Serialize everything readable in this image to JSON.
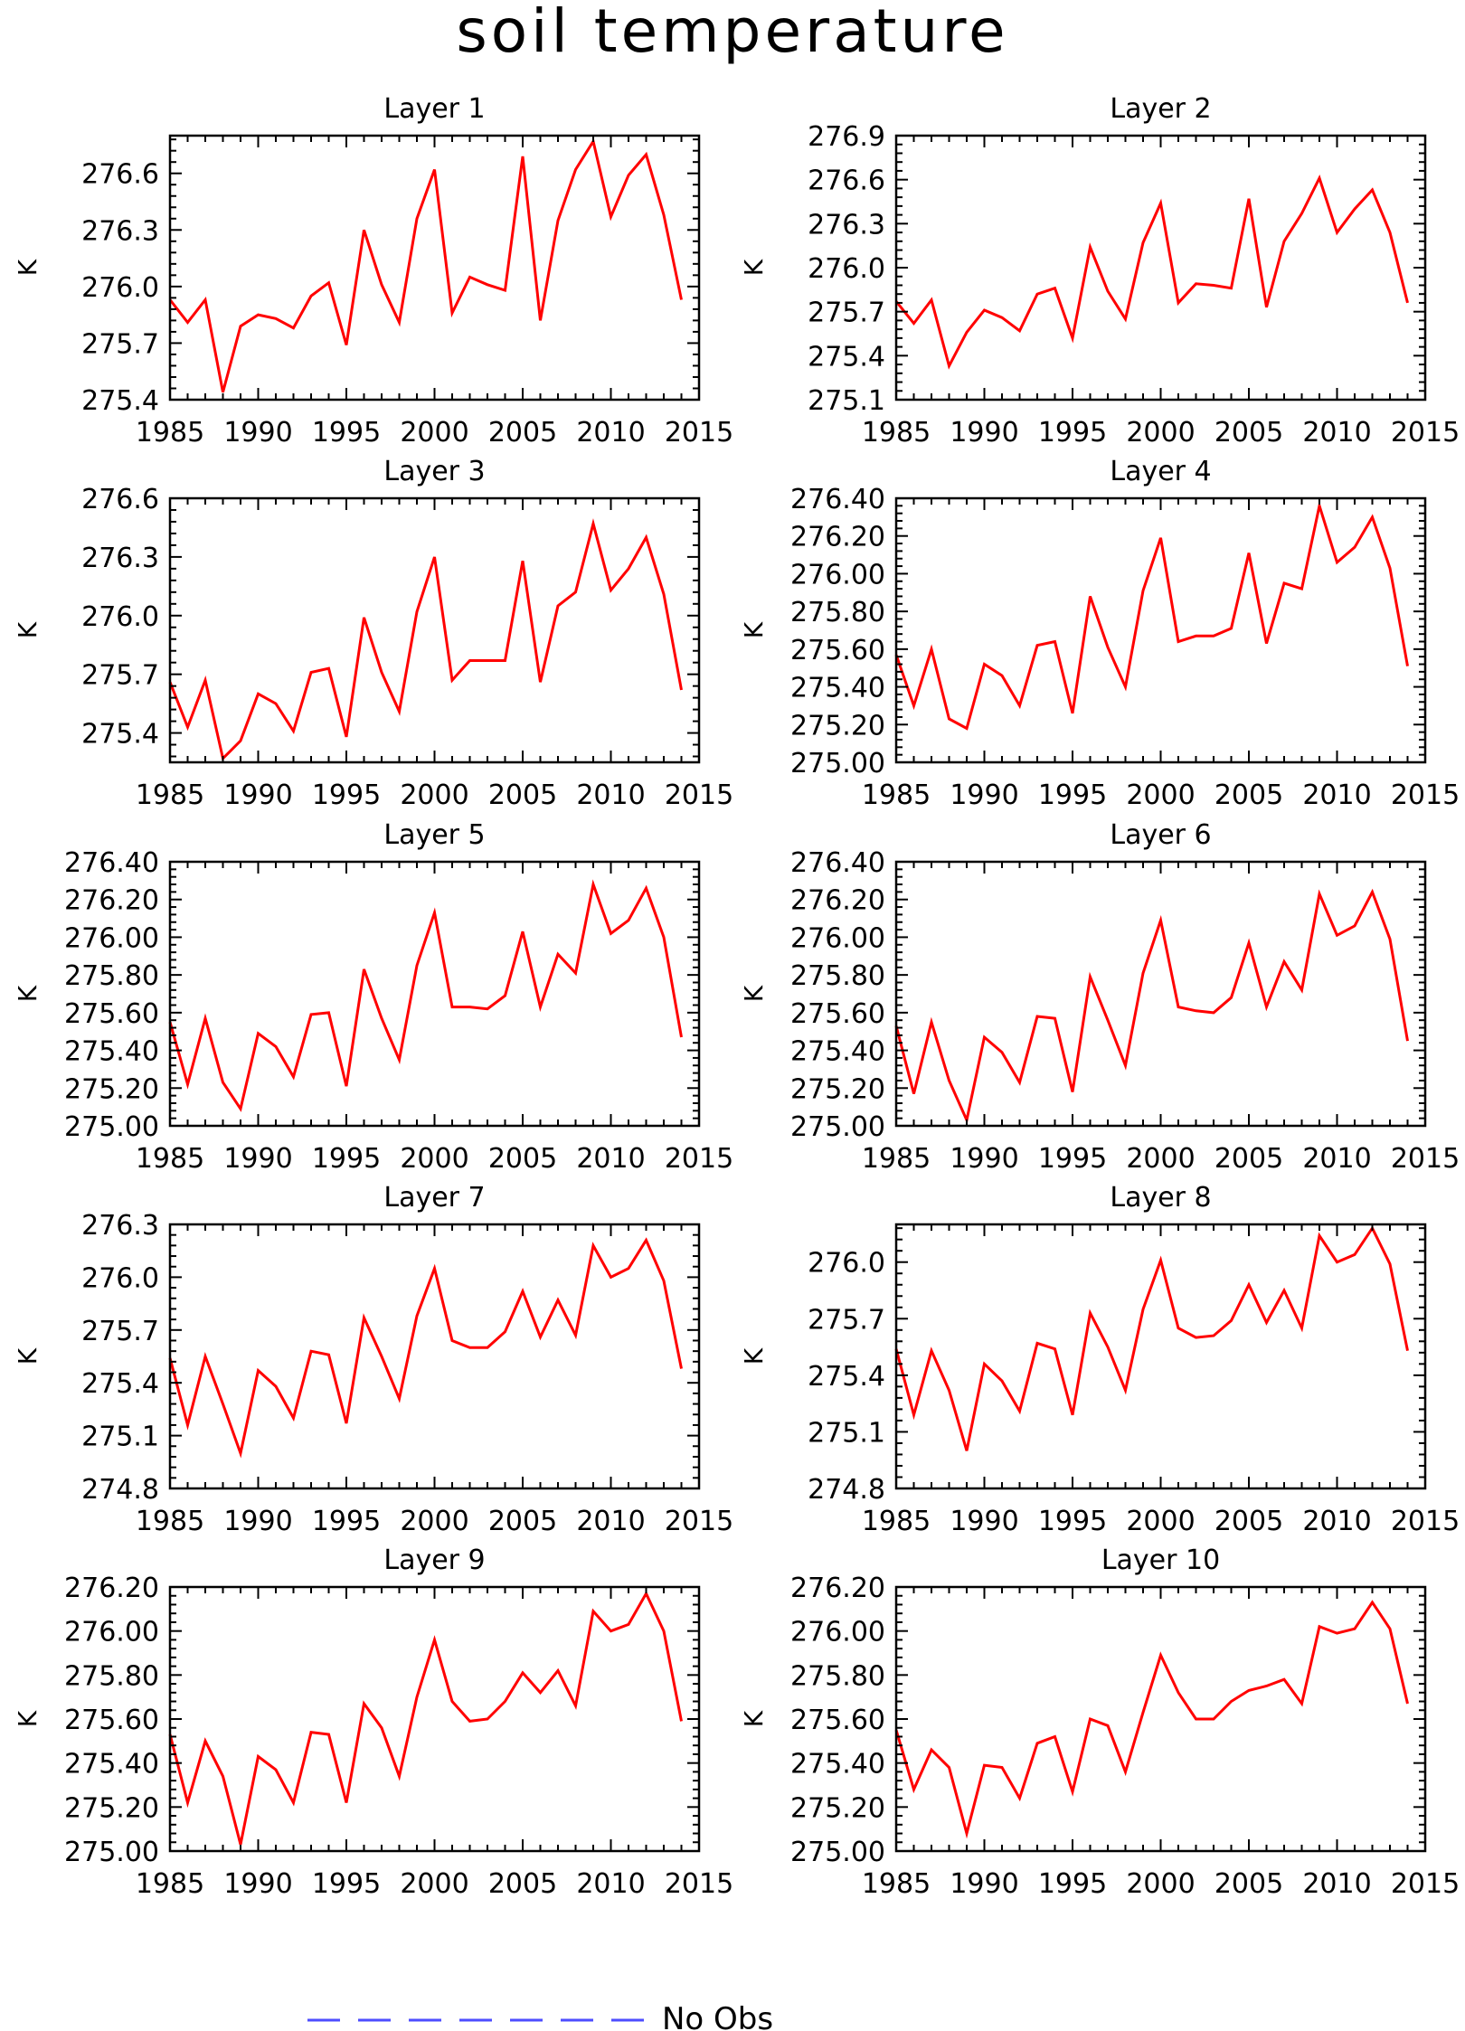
{
  "page": {
    "title": "soil temperature",
    "legend": {
      "label": "No Obs",
      "color": "#4d4dff"
    }
  },
  "colors": {
    "line": "#ff0000",
    "axis": "#000000"
  },
  "chart_data": [
    {
      "type": "line",
      "title": "Layer 1",
      "xlabel": "",
      "ylabel": "K",
      "xlim": [
        1985,
        2015
      ],
      "ylim": [
        275.4,
        276.8
      ],
      "xticks": [
        1985,
        1990,
        1995,
        2000,
        2005,
        2010,
        2015
      ],
      "yticks": [
        "275.4",
        "275.7",
        "276.0",
        "276.3",
        "276.6"
      ],
      "x": [
        1985,
        1986,
        1987,
        1988,
        1989,
        1990,
        1991,
        1992,
        1993,
        1994,
        1995,
        1996,
        1997,
        1998,
        1999,
        2000,
        2001,
        2002,
        2003,
        2004,
        2005,
        2006,
        2007,
        2008,
        2009,
        2010,
        2011,
        2012,
        2013,
        2014
      ],
      "values": [
        275.93,
        275.81,
        275.93,
        275.44,
        275.79,
        275.85,
        275.83,
        275.78,
        275.95,
        276.02,
        275.69,
        276.3,
        276.01,
        275.81,
        276.36,
        276.62,
        275.86,
        276.05,
        276.01,
        275.98,
        276.69,
        275.82,
        276.35,
        276.62,
        276.77,
        276.37,
        276.59,
        276.7,
        276.38,
        275.93
      ]
    },
    {
      "type": "line",
      "title": "Layer 2",
      "xlabel": "",
      "ylabel": "K",
      "xlim": [
        1985,
        2015
      ],
      "ylim": [
        275.1,
        276.9
      ],
      "xticks": [
        1985,
        1990,
        1995,
        2000,
        2005,
        2010,
        2015
      ],
      "yticks": [
        "275.1",
        "275.4",
        "275.7",
        "276.0",
        "276.3",
        "276.6",
        "276.9"
      ],
      "x": [
        1985,
        1986,
        1987,
        1988,
        1989,
        1990,
        1991,
        1992,
        1993,
        1994,
        1995,
        1996,
        1997,
        1998,
        1999,
        2000,
        2001,
        2002,
        2003,
        2004,
        2005,
        2006,
        2007,
        2008,
        2009,
        2010,
        2011,
        2012,
        2013,
        2014
      ],
      "values": [
        275.77,
        275.62,
        275.78,
        275.33,
        275.56,
        275.71,
        275.66,
        275.57,
        275.82,
        275.86,
        275.52,
        276.14,
        275.84,
        275.65,
        276.17,
        276.44,
        275.76,
        275.89,
        275.88,
        275.86,
        276.47,
        275.73,
        276.18,
        276.37,
        276.61,
        276.24,
        276.4,
        276.53,
        276.24,
        275.76
      ]
    },
    {
      "type": "line",
      "title": "Layer 3",
      "xlabel": "",
      "ylabel": "K",
      "xlim": [
        1985,
        2015
      ],
      "ylim": [
        275.25,
        276.6
      ],
      "xticks": [
        1985,
        1990,
        1995,
        2000,
        2005,
        2010,
        2015
      ],
      "yticks": [
        "275.4",
        "275.7",
        "276.0",
        "276.3",
        "276.6"
      ],
      "x": [
        1985,
        1986,
        1987,
        1988,
        1989,
        1990,
        1991,
        1992,
        1993,
        1994,
        1995,
        1996,
        1997,
        1998,
        1999,
        2000,
        2001,
        2002,
        2003,
        2004,
        2005,
        2006,
        2007,
        2008,
        2009,
        2010,
        2011,
        2012,
        2013,
        2014
      ],
      "values": [
        275.66,
        275.43,
        275.67,
        275.27,
        275.36,
        275.6,
        275.55,
        275.41,
        275.71,
        275.73,
        275.38,
        275.99,
        275.71,
        275.51,
        276.02,
        276.3,
        275.67,
        275.77,
        275.77,
        275.77,
        276.28,
        275.66,
        276.05,
        276.12,
        276.47,
        276.13,
        276.24,
        276.4,
        276.11,
        275.62
      ]
    },
    {
      "type": "line",
      "title": "Layer 4",
      "xlabel": "",
      "ylabel": "K",
      "xlim": [
        1985,
        2015
      ],
      "ylim": [
        275.0,
        276.4
      ],
      "xticks": [
        1985,
        1990,
        1995,
        2000,
        2005,
        2010,
        2015
      ],
      "yticks": [
        "275.00",
        "275.20",
        "275.40",
        "275.60",
        "275.80",
        "276.00",
        "276.20",
        "276.40"
      ],
      "x": [
        1985,
        1986,
        1987,
        1988,
        1989,
        1990,
        1991,
        1992,
        1993,
        1994,
        1995,
        1996,
        1997,
        1998,
        1999,
        2000,
        2001,
        2002,
        2003,
        2004,
        2005,
        2006,
        2007,
        2008,
        2009,
        2010,
        2011,
        2012,
        2013,
        2014
      ],
      "values": [
        275.57,
        275.3,
        275.6,
        275.23,
        275.18,
        275.52,
        275.46,
        275.3,
        275.62,
        275.64,
        275.26,
        275.88,
        275.61,
        275.4,
        275.91,
        276.19,
        275.64,
        275.67,
        275.67,
        275.71,
        276.11,
        275.63,
        275.95,
        275.92,
        276.36,
        276.06,
        276.14,
        276.3,
        276.03,
        275.51
      ]
    },
    {
      "type": "line",
      "title": "Layer 5",
      "xlabel": "",
      "ylabel": "K",
      "xlim": [
        1985,
        2015
      ],
      "ylim": [
        275.0,
        276.4
      ],
      "xticks": [
        1985,
        1990,
        1995,
        2000,
        2005,
        2010,
        2015
      ],
      "yticks": [
        "275.00",
        "275.20",
        "275.40",
        "275.60",
        "275.80",
        "276.00",
        "276.20",
        "276.40"
      ],
      "x": [
        1985,
        1986,
        1987,
        1988,
        1989,
        1990,
        1991,
        1992,
        1993,
        1994,
        1995,
        1996,
        1997,
        1998,
        1999,
        2000,
        2001,
        2002,
        2003,
        2004,
        2005,
        2006,
        2007,
        2008,
        2009,
        2010,
        2011,
        2012,
        2013,
        2014
      ],
      "values": [
        275.55,
        275.22,
        275.57,
        275.23,
        275.09,
        275.49,
        275.42,
        275.26,
        275.59,
        275.6,
        275.21,
        275.83,
        275.57,
        275.35,
        275.85,
        276.13,
        275.63,
        275.63,
        275.62,
        275.69,
        276.03,
        275.63,
        275.91,
        275.81,
        276.28,
        276.02,
        276.09,
        276.26,
        276.0,
        275.47
      ]
    },
    {
      "type": "line",
      "title": "Layer 6",
      "xlabel": "",
      "ylabel": "K",
      "xlim": [
        1985,
        2015
      ],
      "ylim": [
        275.0,
        276.4
      ],
      "xticks": [
        1985,
        1990,
        1995,
        2000,
        2005,
        2010,
        2015
      ],
      "yticks": [
        "275.00",
        "275.20",
        "275.40",
        "275.60",
        "275.80",
        "276.00",
        "276.20",
        "276.40"
      ],
      "x": [
        1985,
        1986,
        1987,
        1988,
        1989,
        1990,
        1991,
        1992,
        1993,
        1994,
        1995,
        1996,
        1997,
        1998,
        1999,
        2000,
        2001,
        2002,
        2003,
        2004,
        2005,
        2006,
        2007,
        2008,
        2009,
        2010,
        2011,
        2012,
        2013,
        2014
      ],
      "values": [
        275.53,
        275.17,
        275.55,
        275.24,
        275.03,
        275.47,
        275.39,
        275.23,
        275.58,
        275.57,
        275.18,
        275.79,
        275.56,
        275.32,
        275.81,
        276.09,
        275.63,
        275.61,
        275.6,
        275.68,
        275.97,
        275.63,
        275.87,
        275.72,
        276.23,
        276.01,
        276.06,
        276.24,
        275.99,
        275.45
      ]
    },
    {
      "type": "line",
      "title": "Layer 7",
      "xlabel": "",
      "ylabel": "K",
      "xlim": [
        1985,
        2015
      ],
      "ylim": [
        274.8,
        276.3
      ],
      "xticks": [
        1985,
        1990,
        1995,
        2000,
        2005,
        2010,
        2015
      ],
      "yticks": [
        "274.8",
        "275.1",
        "275.4",
        "275.7",
        "276.0",
        "276.3"
      ],
      "x": [
        1985,
        1986,
        1987,
        1988,
        1989,
        1990,
        1991,
        1992,
        1993,
        1994,
        1995,
        1996,
        1997,
        1998,
        1999,
        2000,
        2001,
        2002,
        2003,
        2004,
        2005,
        2006,
        2007,
        2008,
        2009,
        2010,
        2011,
        2012,
        2013,
        2014
      ],
      "values": [
        275.54,
        275.16,
        275.55,
        275.28,
        275.0,
        275.47,
        275.38,
        275.2,
        275.58,
        275.56,
        275.17,
        275.77,
        275.55,
        275.31,
        275.78,
        276.05,
        275.64,
        275.6,
        275.6,
        275.69,
        275.92,
        275.66,
        275.87,
        275.67,
        276.18,
        276.0,
        276.05,
        276.21,
        275.98,
        275.48
      ]
    },
    {
      "type": "line",
      "title": "Layer 8",
      "xlabel": "",
      "ylabel": "K",
      "xlim": [
        1985,
        2015
      ],
      "ylim": [
        274.8,
        276.2
      ],
      "xticks": [
        1985,
        1990,
        1995,
        2000,
        2005,
        2010,
        2015
      ],
      "yticks": [
        "274.8",
        "275.1",
        "275.4",
        "275.7",
        "276.0"
      ],
      "x": [
        1985,
        1986,
        1987,
        1988,
        1989,
        1990,
        1991,
        1992,
        1993,
        1994,
        1995,
        1996,
        1997,
        1998,
        1999,
        2000,
        2001,
        2002,
        2003,
        2004,
        2005,
        2006,
        2007,
        2008,
        2009,
        2010,
        2011,
        2012,
        2013,
        2014
      ],
      "values": [
        275.54,
        275.19,
        275.53,
        275.32,
        275.0,
        275.46,
        275.37,
        275.21,
        275.57,
        275.54,
        275.19,
        275.73,
        275.55,
        275.32,
        275.75,
        276.01,
        275.65,
        275.6,
        275.61,
        275.69,
        275.88,
        275.68,
        275.85,
        275.65,
        276.14,
        276.0,
        276.04,
        276.18,
        275.99,
        275.53
      ]
    },
    {
      "type": "line",
      "title": "Layer 9",
      "xlabel": "",
      "ylabel": "K",
      "xlim": [
        1985,
        2015
      ],
      "ylim": [
        275.0,
        276.2
      ],
      "xticks": [
        1985,
        1990,
        1995,
        2000,
        2005,
        2010,
        2015
      ],
      "yticks": [
        "275.00",
        "275.20",
        "275.40",
        "275.60",
        "275.80",
        "276.00",
        "276.20"
      ],
      "x": [
        1985,
        1986,
        1987,
        1988,
        1989,
        1990,
        1991,
        1992,
        1993,
        1994,
        1995,
        1996,
        1997,
        1998,
        1999,
        2000,
        2001,
        2002,
        2003,
        2004,
        2005,
        2006,
        2007,
        2008,
        2009,
        2010,
        2011,
        2012,
        2013,
        2014
      ],
      "values": [
        275.53,
        275.22,
        275.5,
        275.34,
        275.03,
        275.43,
        275.37,
        275.22,
        275.54,
        275.53,
        275.22,
        275.67,
        275.56,
        275.34,
        275.7,
        275.96,
        275.68,
        275.59,
        275.6,
        275.68,
        275.81,
        275.72,
        275.82,
        275.66,
        276.09,
        276.0,
        276.03,
        276.17,
        276.0,
        275.59
      ]
    },
    {
      "type": "line",
      "title": "Layer 10",
      "xlabel": "",
      "ylabel": "K",
      "xlim": [
        1985,
        2015
      ],
      "ylim": [
        275.0,
        276.2
      ],
      "xticks": [
        1985,
        1990,
        1995,
        2000,
        2005,
        2010,
        2015
      ],
      "yticks": [
        "275.00",
        "275.20",
        "275.40",
        "275.60",
        "275.80",
        "276.00",
        "276.20"
      ],
      "x": [
        1985,
        1986,
        1987,
        1988,
        1989,
        1990,
        1991,
        1992,
        1993,
        1994,
        1995,
        1996,
        1997,
        1998,
        1999,
        2000,
        2001,
        2002,
        2003,
        2004,
        2005,
        2006,
        2007,
        2008,
        2009,
        2010,
        2011,
        2012,
        2013,
        2014
      ],
      "values": [
        275.55,
        275.28,
        275.46,
        275.38,
        275.08,
        275.39,
        275.38,
        275.24,
        275.49,
        275.52,
        275.27,
        275.6,
        275.57,
        275.36,
        275.63,
        275.89,
        275.72,
        275.6,
        275.6,
        275.68,
        275.73,
        275.75,
        275.78,
        275.67,
        276.02,
        275.99,
        276.01,
        276.13,
        276.01,
        275.67
      ]
    }
  ]
}
